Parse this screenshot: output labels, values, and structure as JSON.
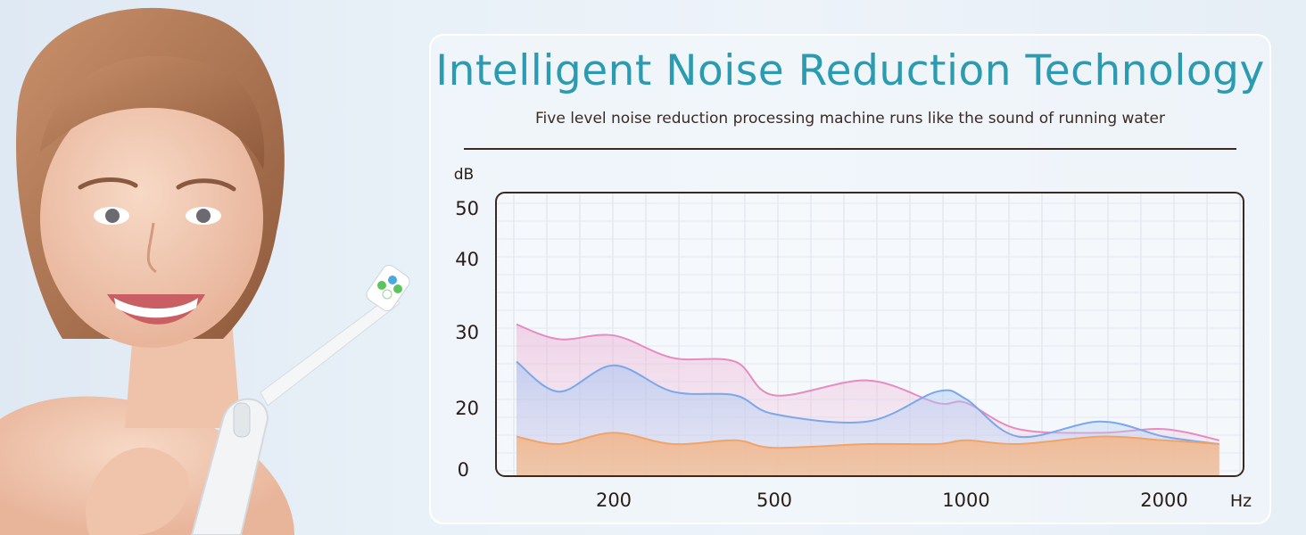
{
  "header": {
    "title": "Intelligent Noise Reduction Technology",
    "subtitle": "Five level noise reduction processing machine runs like the sound of running water"
  },
  "colors": {
    "title": "#2a9bb0",
    "pink_series": "#e58cc0",
    "blue_series": "#7aa8e8",
    "orange_series": "#f0a46a",
    "frame": "#3a2a22"
  },
  "chart_data": {
    "type": "area",
    "ylabel": "dB",
    "xlabel": "Hz",
    "y_ticks": [
      "50",
      "40",
      "30",
      "20",
      "0"
    ],
    "x_ticks": [
      "200",
      "500",
      "1000",
      "2000"
    ],
    "grid": true,
    "x": [
      120,
      150,
      200,
      280,
      400,
      500,
      700,
      900,
      1000,
      1200,
      1600,
      2000,
      2400
    ],
    "series": [
      {
        "values": [
          31,
          29,
          29.5,
          26.5,
          26,
          21.5,
          23.5,
          20.5,
          20.5,
          17,
          16.5,
          17,
          15.5
        ]
      },
      {
        "values": [
          26,
          22,
          25.5,
          22,
          21.5,
          19,
          18,
          22,
          21,
          16,
          18,
          16,
          15
        ]
      },
      {
        "values": [
          16,
          15,
          16.5,
          15,
          15.5,
          14.5,
          15,
          15,
          15.5,
          15,
          16,
          15.5,
          15
        ]
      }
    ]
  }
}
